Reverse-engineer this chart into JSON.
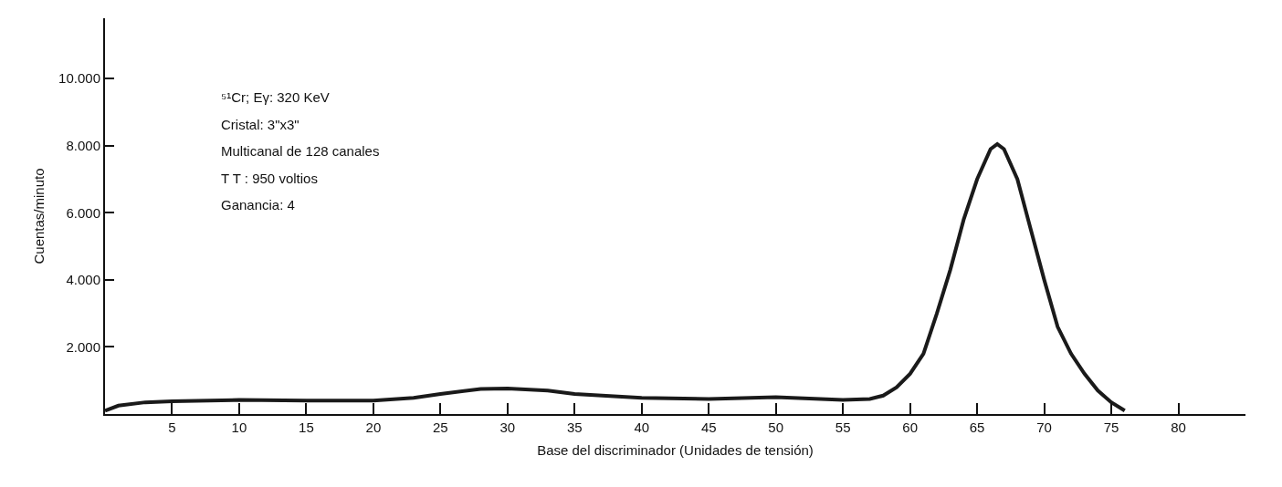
{
  "chart_data": {
    "type": "line",
    "xlabel": "Base del discriminador (Unidades de tensión)",
    "ylabel": "Cuentas/minuto",
    "annotations": [
      "⁵¹Cr; Eγ: 320 KeV",
      "Cristal: 3\"x3\"",
      "Multicanal de 128 canales",
      "T T : 950 voltios",
      "Ganancia: 4"
    ],
    "x": [
      0,
      1,
      3,
      5,
      10,
      15,
      20,
      23,
      25,
      28,
      30,
      33,
      35,
      40,
      45,
      50,
      55,
      57,
      58,
      59,
      60,
      61,
      62,
      63,
      64,
      65,
      66,
      66.5,
      67,
      68,
      69,
      70,
      71,
      72,
      73,
      74,
      75,
      76
    ],
    "series": [
      {
        "color": "#1a1a1a",
        "values": [
          100,
          250,
          350,
          380,
          420,
          400,
          400,
          480,
          600,
          750,
          760,
          700,
          600,
          480,
          450,
          500,
          420,
          450,
          550,
          800,
          1200,
          1800,
          3000,
          4300,
          5800,
          7000,
          7900,
          8050,
          7900,
          7000,
          5500,
          4000,
          2600,
          1800,
          1200,
          700,
          350,
          100
        ]
      }
    ],
    "xlim": [
      0,
      85
    ],
    "xticks": [
      5,
      10,
      15,
      20,
      25,
      30,
      35,
      40,
      45,
      50,
      55,
      60,
      65,
      70,
      75,
      80
    ],
    "ylim": [
      0,
      11800
    ],
    "yticks": [
      {
        "value": 2000,
        "label": "2.000"
      },
      {
        "value": 4000,
        "label": "4.000"
      },
      {
        "value": 6000,
        "label": "6.000"
      },
      {
        "value": 8000,
        "label": "8.000"
      },
      {
        "value": 10000,
        "label": "10.000"
      }
    ],
    "grid": false,
    "legend": false,
    "marker": "none",
    "line_style": "solid"
  }
}
